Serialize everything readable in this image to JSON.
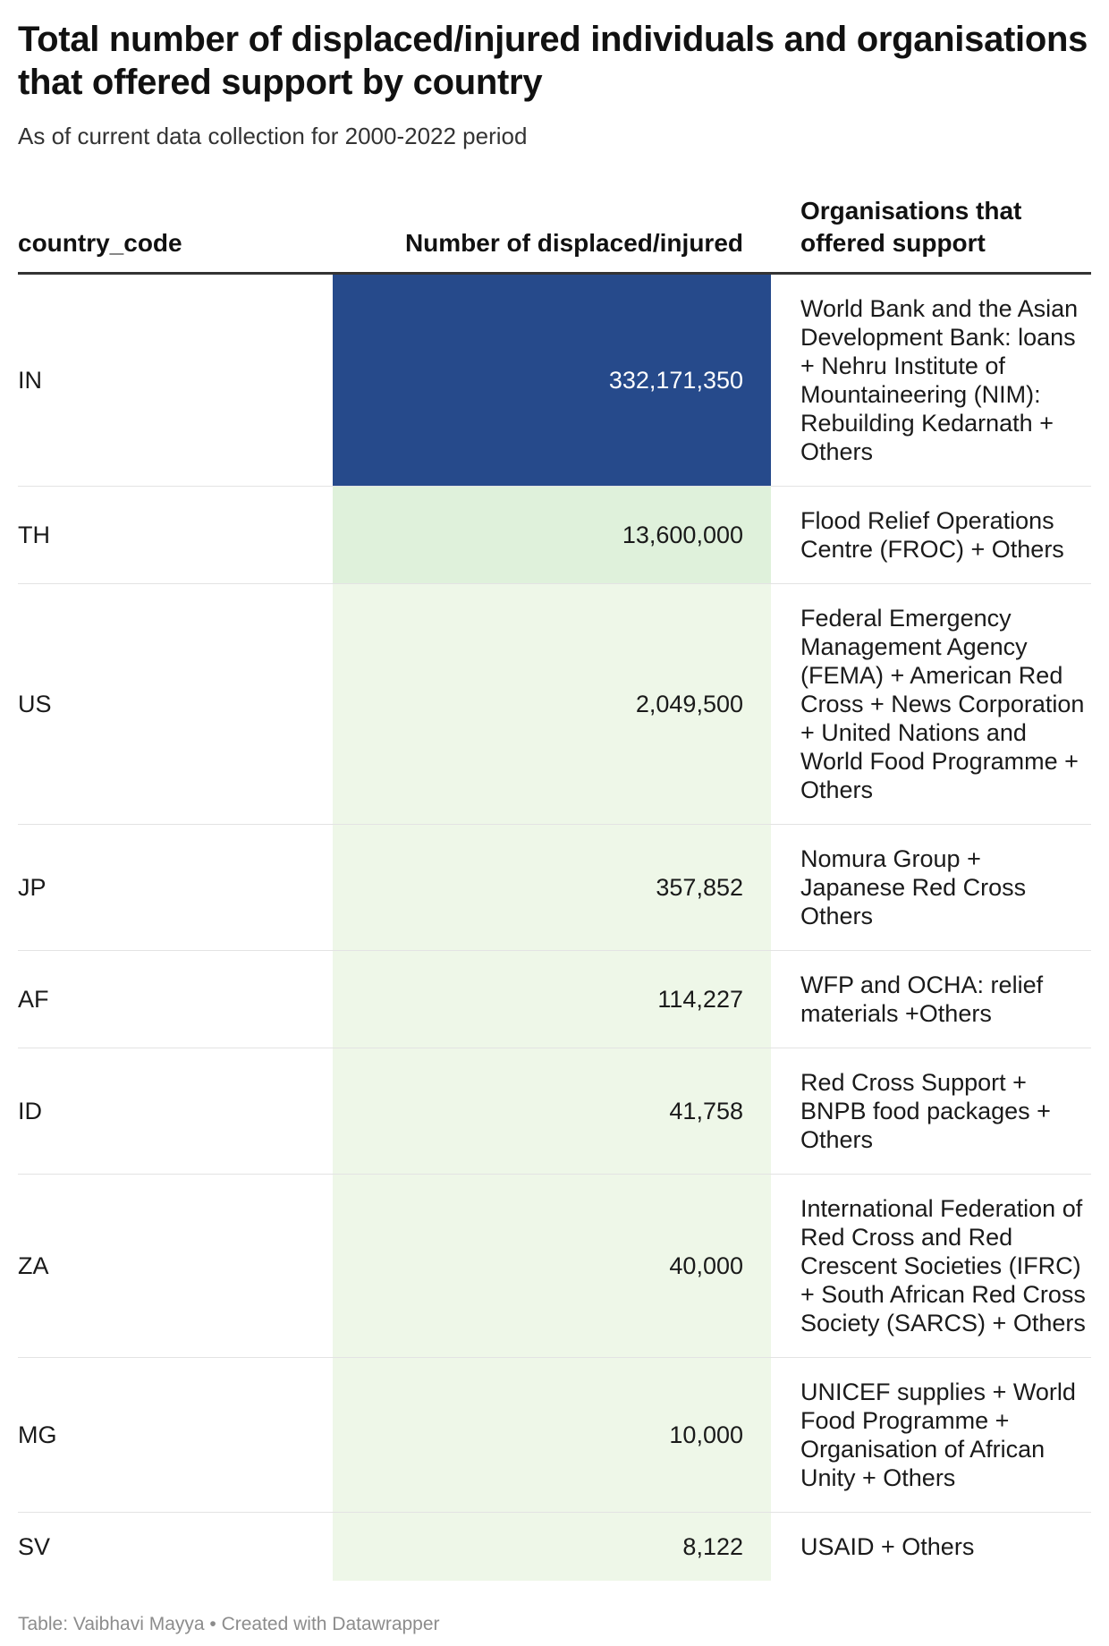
{
  "title": "Total number of displaced/injured individuals and organisations that offered support by country",
  "subtitle": "As of current data collection for 2000-2022 period",
  "colors": {
    "max": "#264a8b",
    "high": "#dff1db",
    "low": "#eef7e8",
    "text_dark": "#1a1a1a",
    "text_light": "#ffffff"
  },
  "chart_data": {
    "type": "table",
    "columns": [
      "country_code",
      "Number of displaced/injured",
      "Organisations that offered support"
    ],
    "rows": [
      {
        "country_code": "IN",
        "value": 332171350,
        "value_label": "332,171,350",
        "organisations": "World Bank and the Asian Development Bank: loans + Nehru Institute of Mountaineering (NIM): Rebuilding Kedarnath + Others"
      },
      {
        "country_code": "TH",
        "value": 13600000,
        "value_label": "13,600,000",
        "organisations": "Flood Relief Operations Centre (FROC) + Others"
      },
      {
        "country_code": "US",
        "value": 2049500,
        "value_label": "2,049,500",
        "organisations": "Federal Emergency Management Agency (FEMA) + American Red Cross + News Corporation + United Nations and World Food Programme + Others"
      },
      {
        "country_code": "JP",
        "value": 357852,
        "value_label": "357,852",
        "organisations": "Nomura Group + Japanese Red Cross Others"
      },
      {
        "country_code": "AF",
        "value": 114227,
        "value_label": "114,227",
        "organisations": "WFP and OCHA: relief materials +Others"
      },
      {
        "country_code": "ID",
        "value": 41758,
        "value_label": "41,758",
        "organisations": "Red Cross Support + BNPB food packages + Others"
      },
      {
        "country_code": "ZA",
        "value": 40000,
        "value_label": "40,000",
        "organisations": "International Federation of Red Cross and Red Crescent Societies (IFRC) + South African Red Cross Society (SARCS) + Others"
      },
      {
        "country_code": "MG",
        "value": 10000,
        "value_label": "10,000",
        "organisations": "UNICEF supplies + World Food Programme + Organisation of African Unity + Others"
      },
      {
        "country_code": "SV",
        "value": 8122,
        "value_label": "8,122",
        "organisations": "USAID + Others"
      }
    ]
  },
  "footer": "Table: Vaibhavi Mayya • Created with Datawrapper"
}
